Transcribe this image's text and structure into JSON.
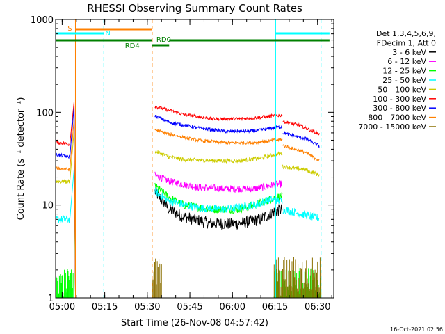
{
  "chart_data": {
    "type": "line",
    "title": "RHESSI Observing Summary Count Rates",
    "xlabel": "Start Time (26-Nov-08 04:57:42)",
    "ylabel": "Count Rate (s⁻¹ detector⁻¹)",
    "y_scale": "log",
    "ylim": [
      1,
      1000
    ],
    "xlim_minutes": [
      0,
      98
    ],
    "x_tick_labels": [
      "05:00",
      "05:15",
      "05:30",
      "05:45",
      "06:00",
      "06:15",
      "06:30"
    ],
    "x_tick_minutes": [
      2.3,
      17.3,
      32.3,
      47.3,
      62.3,
      77.3,
      92.3
    ],
    "y_tick_labels": [
      "1",
      "10",
      "100",
      "1000"
    ],
    "y_tick_values": [
      1,
      10,
      100,
      1000
    ],
    "legend_header": [
      "Det 1,3,4,5,6,9,",
      "FDecim 1, Att 0"
    ],
    "legend_position": "right",
    "series": [
      {
        "name": "3 - 6 keV",
        "color": "#000000",
        "values": []
      },
      {
        "name": "6 - 12 keV",
        "color": "#ff00ff",
        "values": []
      },
      {
        "name": "12 - 25 keV",
        "color": "#00ff00",
        "values": []
      },
      {
        "name": "25 - 50 keV",
        "color": "#00ffff",
        "values": []
      },
      {
        "name": "50 - 100 keV",
        "color": "#cccc00",
        "values": []
      },
      {
        "name": "100 - 300 keV",
        "color": "#ff0000",
        "values": []
      },
      {
        "name": "300 - 800 keV",
        "color": "#0000ff",
        "values": []
      },
      {
        "name": "800 - 7000 keV",
        "color": "#ff8000",
        "values": []
      },
      {
        "name": "7000 - 15000 keV",
        "color": "#8b6f00",
        "values": []
      }
    ],
    "annotations": [
      {
        "text": "S",
        "color": "#ff8000"
      },
      {
        "text": "N",
        "color": "#00ffff"
      },
      {
        "text": "RD4",
        "color": "#008000"
      },
      {
        "text": "RD0",
        "color": "#008000"
      }
    ],
    "timestamp": "16-Oct-2021 02:56"
  }
}
